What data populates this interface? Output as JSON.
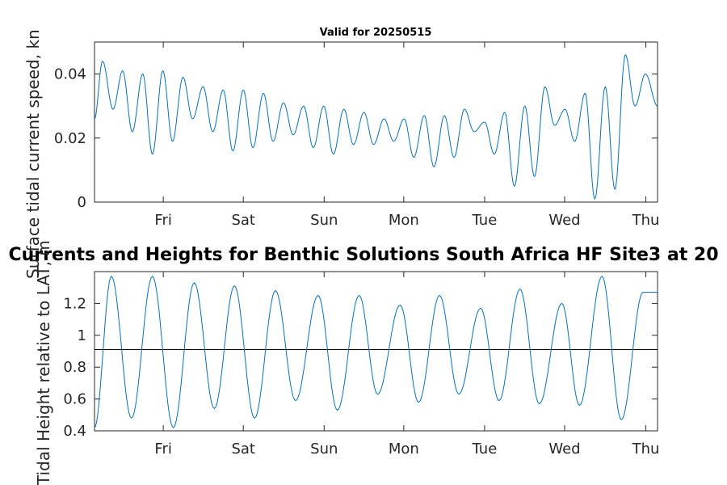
{
  "chart_data": [
    {
      "type": "line",
      "title": "Valid for 20250515",
      "xlabel": "",
      "ylabel": "Surface tidal current speed, kn",
      "x_tick_labels": [
        "Fri",
        "Sat",
        "Sun",
        "Mon",
        "Tue",
        "Wed",
        "Thu"
      ],
      "x_unit": "days",
      "xlim": [
        0,
        7
      ],
      "ylim": [
        0,
        0.05
      ],
      "y_ticks": [
        0,
        0.02,
        0.04
      ],
      "y_tick_labels": [
        "0",
        "0.02",
        "0.04"
      ],
      "grid": false,
      "series": [
        {
          "color": "#0072BD",
          "x": [
            0.0,
            0.1,
            0.23,
            0.35,
            0.47,
            0.6,
            0.72,
            0.85,
            0.97,
            1.1,
            1.22,
            1.35,
            1.47,
            1.6,
            1.72,
            1.85,
            1.97,
            2.1,
            2.22,
            2.35,
            2.47,
            2.6,
            2.72,
            2.85,
            2.97,
            3.1,
            3.22,
            3.35,
            3.47,
            3.6,
            3.72,
            3.85,
            3.97,
            4.1,
            4.22,
            4.35,
            4.47,
            4.6,
            4.72,
            4.85,
            4.97,
            5.1,
            5.22,
            5.35,
            5.47,
            5.6,
            5.72,
            5.85,
            5.97,
            6.1,
            6.22,
            6.35,
            6.47,
            6.6,
            6.72,
            6.85,
            7.0
          ],
          "y": [
            0.026,
            0.044,
            0.029,
            0.041,
            0.022,
            0.04,
            0.015,
            0.041,
            0.019,
            0.039,
            0.026,
            0.036,
            0.022,
            0.035,
            0.016,
            0.035,
            0.017,
            0.034,
            0.019,
            0.031,
            0.021,
            0.03,
            0.017,
            0.03,
            0.015,
            0.029,
            0.018,
            0.028,
            0.018,
            0.026,
            0.019,
            0.026,
            0.014,
            0.027,
            0.011,
            0.027,
            0.014,
            0.029,
            0.022,
            0.025,
            0.015,
            0.028,
            0.005,
            0.03,
            0.008,
            0.036,
            0.024,
            0.029,
            0.019,
            0.034,
            0.001,
            0.036,
            0.004,
            0.046,
            0.03,
            0.04,
            0.03
          ]
        }
      ]
    },
    {
      "type": "line",
      "title": "Currents and Heights for Benthic Solutions South Africa HF Site3 at 20",
      "xlabel": "",
      "ylabel": "Tidal Height relative to LAT, m",
      "x_tick_labels": [
        "Fri",
        "Sat",
        "Sun",
        "Mon",
        "Tue",
        "Wed",
        "Thu"
      ],
      "x_unit": "days",
      "xlim": [
        0,
        7
      ],
      "ylim": [
        0.4,
        1.4
      ],
      "y_ticks": [
        0.4,
        0.6,
        0.8,
        1.0,
        1.2
      ],
      "y_tick_labels": [
        "0.4",
        "0.6",
        "0.8",
        "1",
        "1.2"
      ],
      "grid": false,
      "reference_line": 0.91,
      "series": [
        {
          "color": "#0072BD",
          "x": [
            0.0,
            0.21,
            0.46,
            0.72,
            0.98,
            1.24,
            1.49,
            1.74,
            1.99,
            2.25,
            2.5,
            2.78,
            3.02,
            3.29,
            3.52,
            3.8,
            4.03,
            4.29,
            4.53,
            4.8,
            5.03,
            5.29,
            5.53,
            5.81,
            6.03,
            6.31,
            6.55,
            6.82,
            7.0
          ],
          "y": [
            0.42,
            1.37,
            0.48,
            1.37,
            0.42,
            1.33,
            0.54,
            1.31,
            0.48,
            1.28,
            0.59,
            1.25,
            0.53,
            1.25,
            0.63,
            1.19,
            0.58,
            1.25,
            0.63,
            1.17,
            0.59,
            1.29,
            0.57,
            1.2,
            0.56,
            1.37,
            0.47,
            1.27,
            1.27
          ]
        }
      ]
    }
  ]
}
